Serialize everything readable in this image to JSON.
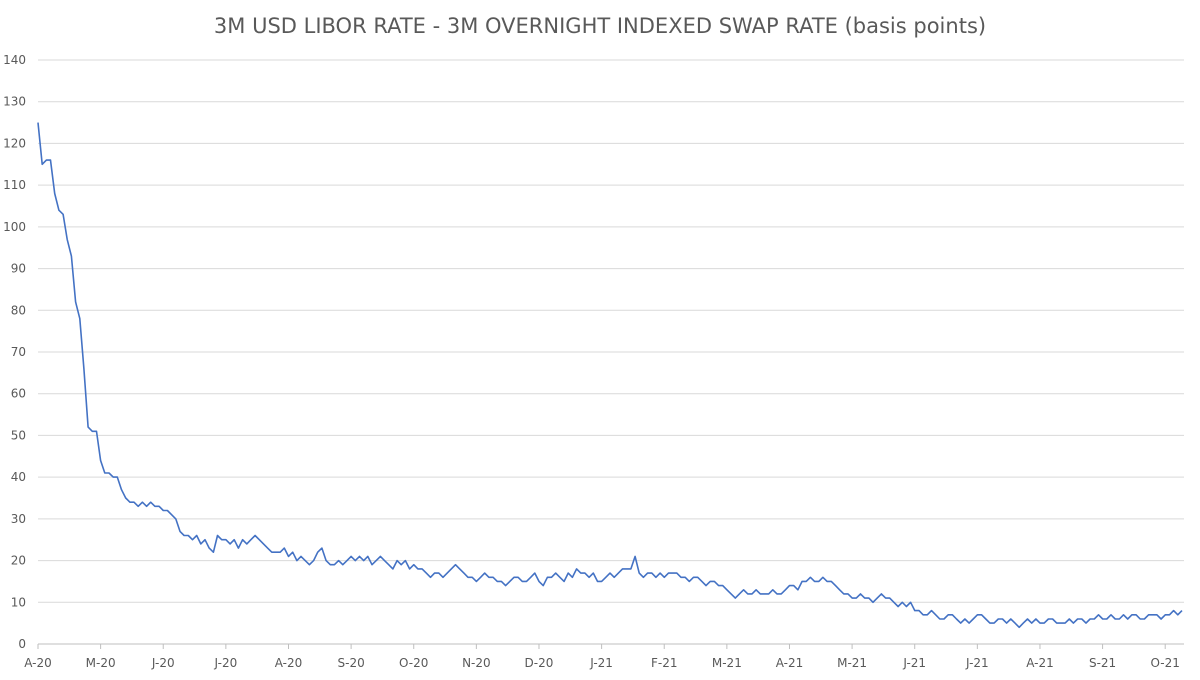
{
  "chart_data": {
    "type": "line",
    "title": "3M USD LIBOR RATE - 3M OVERNIGHT INDEXED SWAP RATE (basis points)",
    "xlabel": "",
    "ylabel": "",
    "ylim": [
      0,
      140
    ],
    "y_ticks": [
      0,
      10,
      20,
      30,
      40,
      50,
      60,
      70,
      80,
      90,
      100,
      110,
      120,
      130,
      140
    ],
    "x_ticks": [
      "A-20",
      "M-20",
      "J-20",
      "J-20",
      "A-20",
      "S-20",
      "O-20",
      "N-20",
      "D-20",
      "J-21",
      "F-21",
      "M-21",
      "A-21",
      "M-21",
      "J-21",
      "J-21",
      "A-21",
      "S-21",
      "O-21"
    ],
    "grid": true,
    "legend": "none",
    "color": "#4472c4",
    "series": [
      {
        "name": "",
        "values": [
          125,
          115,
          116,
          116,
          108,
          104,
          103,
          97,
          93,
          82,
          78,
          66,
          52,
          51,
          51,
          44,
          41,
          41,
          40,
          40,
          37,
          35,
          34,
          34,
          33,
          34,
          33,
          34,
          33,
          33,
          32,
          32,
          31,
          30,
          27,
          26,
          26,
          25,
          26,
          24,
          25,
          23,
          22,
          26,
          25,
          25,
          24,
          25,
          23,
          25,
          24,
          25,
          26,
          25,
          24,
          23,
          22,
          22,
          22,
          23,
          21,
          22,
          20,
          21,
          20,
          19,
          20,
          22,
          23,
          20,
          19,
          19,
          20,
          19,
          20,
          21,
          20,
          21,
          20,
          21,
          19,
          20,
          21,
          20,
          19,
          18,
          20,
          19,
          20,
          18,
          19,
          18,
          18,
          17,
          16,
          17,
          17,
          16,
          17,
          18,
          19,
          18,
          17,
          16,
          16,
          15,
          16,
          17,
          16,
          16,
          15,
          15,
          14,
          15,
          16,
          16,
          15,
          15,
          16,
          17,
          15,
          14,
          16,
          16,
          17,
          16,
          15,
          17,
          16,
          18,
          17,
          17,
          16,
          17,
          15,
          15,
          16,
          17,
          16,
          17,
          18,
          18,
          18,
          21,
          17,
          16,
          17,
          17,
          16,
          17,
          16,
          17,
          17,
          17,
          16,
          16,
          15,
          16,
          16,
          15,
          14,
          15,
          15,
          14,
          14,
          13,
          12,
          11,
          12,
          13,
          12,
          12,
          13,
          12,
          12,
          12,
          13,
          12,
          12,
          13,
          14,
          14,
          13,
          15,
          15,
          16,
          15,
          15,
          16,
          15,
          15,
          14,
          13,
          12,
          12,
          11,
          11,
          12,
          11,
          11,
          10,
          11,
          12,
          11,
          11,
          10,
          9,
          10,
          9,
          10,
          8,
          8,
          7,
          7,
          8,
          7,
          6,
          6,
          7,
          7,
          6,
          5,
          6,
          5,
          6,
          7,
          7,
          6,
          5,
          5,
          6,
          6,
          5,
          6,
          5,
          4,
          5,
          6,
          5,
          6,
          5,
          5,
          6,
          6,
          5,
          5,
          5,
          6,
          5,
          6,
          6,
          5,
          6,
          6,
          7,
          6,
          6,
          7,
          6,
          6,
          7,
          6,
          7,
          7,
          6,
          6,
          7,
          7,
          7,
          6,
          7,
          7,
          8,
          7,
          8
        ]
      }
    ]
  }
}
